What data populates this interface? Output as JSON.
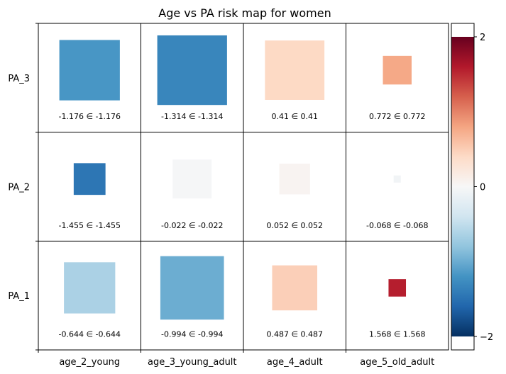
{
  "chart_data": {
    "type": "heatmap",
    "title": "Age vs PA risk map for women",
    "x_categories": [
      "age_2_young",
      "age_3_young_adult",
      "age_4_adult",
      "age_5_old_adult"
    ],
    "y_categories": [
      "PA_3",
      "PA_2",
      "PA_1"
    ],
    "cells": [
      {
        "row": "PA_3",
        "col": "age_2_young",
        "value": -1.176,
        "label": "-1.176 ∈ -1.176",
        "size": 0.59
      },
      {
        "row": "PA_3",
        "col": "age_3_young_adult",
        "value": -1.314,
        "label": "-1.314 ∈ -1.314",
        "size": 0.68
      },
      {
        "row": "PA_3",
        "col": "age_4_adult",
        "value": 0.41,
        "label": "0.41 ∈ 0.41",
        "size": 0.58
      },
      {
        "row": "PA_3",
        "col": "age_5_old_adult",
        "value": 0.772,
        "label": "0.772 ∈ 0.772",
        "size": 0.28
      },
      {
        "row": "PA_2",
        "col": "age_2_young",
        "value": -1.455,
        "label": "-1.455 ∈ -1.455",
        "size": 0.31
      },
      {
        "row": "PA_2",
        "col": "age_3_young_adult",
        "value": -0.022,
        "label": "-0.022 ∈ -0.022",
        "size": 0.38
      },
      {
        "row": "PA_2",
        "col": "age_4_adult",
        "value": 0.052,
        "label": "0.052 ∈ 0.052",
        "size": 0.3
      },
      {
        "row": "PA_2",
        "col": "age_5_old_adult",
        "value": -0.068,
        "label": "-0.068 ∈ -0.068",
        "size": 0.07
      },
      {
        "row": "PA_1",
        "col": "age_2_young",
        "value": -0.644,
        "label": "-0.644 ∈ -0.644",
        "size": 0.5
      },
      {
        "row": "PA_1",
        "col": "age_3_young_adult",
        "value": -0.994,
        "label": "-0.994 ∈ -0.994",
        "size": 0.62
      },
      {
        "row": "PA_1",
        "col": "age_4_adult",
        "value": 0.487,
        "label": "0.487 ∈ 0.487",
        "size": 0.44
      },
      {
        "row": "PA_1",
        "col": "age_5_old_adult",
        "value": 1.568,
        "label": "1.568 ∈ 1.568",
        "size": 0.17
      }
    ],
    "colorbar": {
      "colormap": "RdBu_r",
      "range": [
        -2,
        2
      ],
      "ticks": [
        2,
        0,
        -2
      ],
      "tick_labels": [
        "2",
        "0",
        "−2"
      ]
    },
    "grid": true
  }
}
